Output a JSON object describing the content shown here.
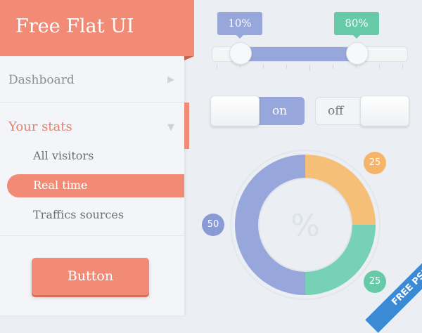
{
  "sidebar": {
    "title": "Free Flat UI",
    "dashboard": "Dashboard",
    "section": "Your stats",
    "items": [
      "All visitors",
      "Real time",
      "Traffics sources"
    ],
    "active_item": "Real time",
    "button": "Button"
  },
  "slider": {
    "low": "10%",
    "high": "80%",
    "low_value": 10,
    "high_value": 80
  },
  "toggles": {
    "on_label": "on",
    "off_label": "off"
  },
  "chart_data": {
    "type": "pie",
    "center_label": "%",
    "values": [
      50,
      25,
      25
    ],
    "labels": [
      "50",
      "25",
      "25"
    ],
    "colors": [
      "#97a6db",
      "#f6bf78",
      "#77d1b5"
    ]
  },
  "ribbon": "FREE PSD",
  "colors": {
    "accent": "#f28b75",
    "blue": "#97a6db",
    "green": "#66c9a8",
    "orange": "#f6b46a"
  }
}
